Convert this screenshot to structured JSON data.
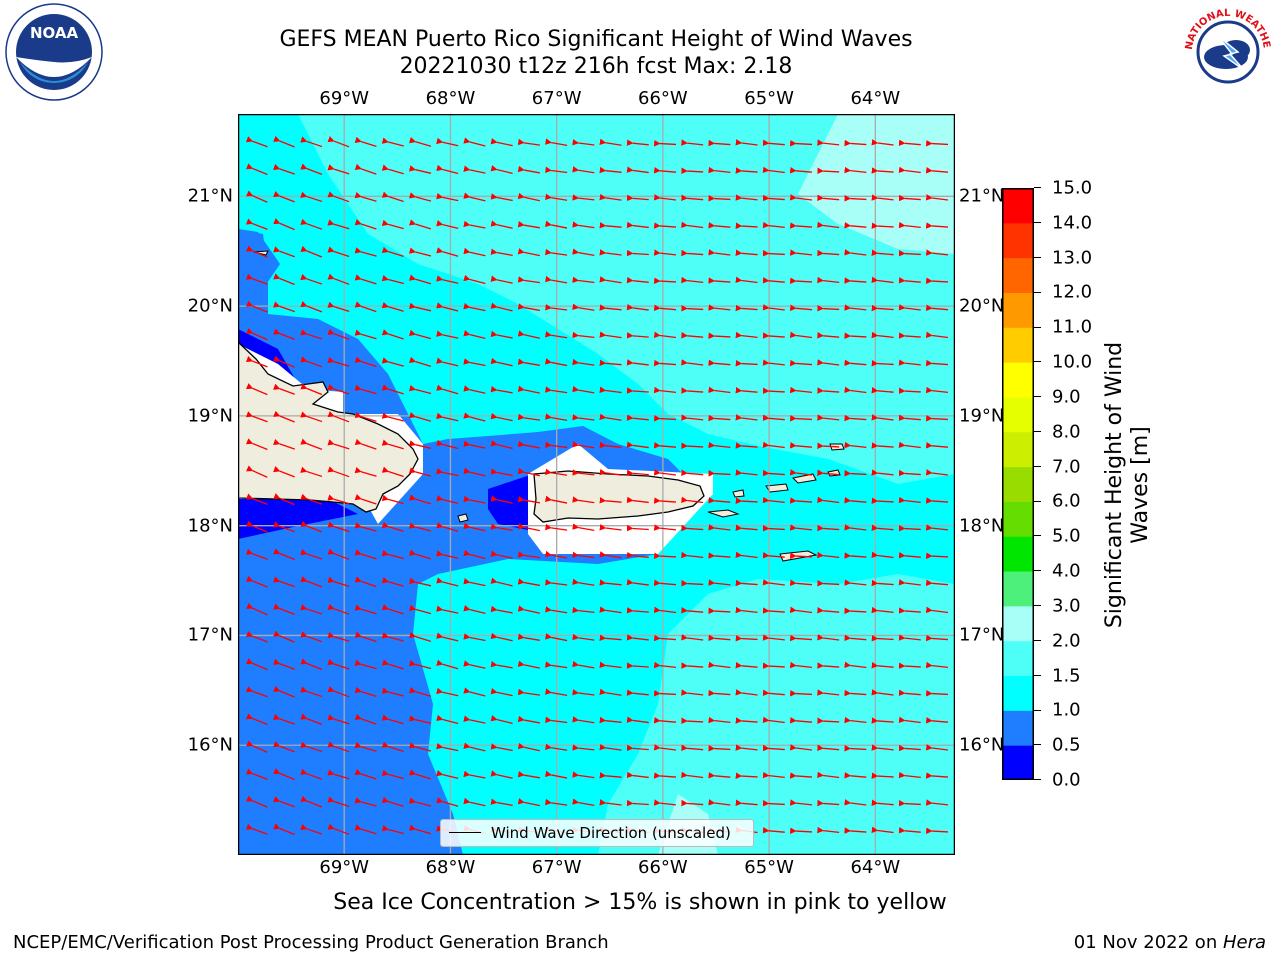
{
  "title": {
    "line1": "GEFS MEAN Puerto Rico Significant Height of Wind Waves",
    "line2": "20221030 t12z 216h fcst   Max: 2.18"
  },
  "map": {
    "lon_ticks": [
      "69°W",
      "68°W",
      "67°W",
      "66°W",
      "65°W",
      "64°W"
    ],
    "lat_ticks": [
      "21°N",
      "20°N",
      "19°N",
      "18°N",
      "17°N",
      "16°N"
    ],
    "lon_values": [
      -69,
      -68,
      -67,
      -66,
      -65,
      -64
    ],
    "lat_values": [
      21,
      20,
      19,
      18,
      17,
      16
    ],
    "lon_range": [
      -70.0,
      -63.25
    ],
    "lat_range": [
      15.0,
      21.75
    ],
    "arrow_color": "#ff0000",
    "land_color": "#efedde"
  },
  "legend": {
    "label": "Wind Wave Direction (unscaled)"
  },
  "colorbar": {
    "title": "Significant Height of Wind Waves [m]",
    "levels": [
      "0.0",
      "0.5",
      "1.0",
      "1.5",
      "2.0",
      "3.0",
      "4.0",
      "5.0",
      "6.0",
      "7.0",
      "8.0",
      "9.0",
      "10.0",
      "11.0",
      "12.0",
      "13.0",
      "14.0",
      "15.0"
    ],
    "colors": [
      "#0000ff",
      "#1e7eff",
      "#00ffff",
      "#4dfff6",
      "#a8fff8",
      "#4df07a",
      "#00e600",
      "#66dd00",
      "#99dd00",
      "#ccee00",
      "#e6ff00",
      "#ffff00",
      "#ffcc00",
      "#ff9900",
      "#ff6600",
      "#ff3300",
      "#ff0000"
    ]
  },
  "note": "Sea Ice Concentration > 15% is shown in pink to yellow",
  "footer": {
    "left": "NCEP/EMC/Verification Post Processing Product Generation Branch",
    "right_prefix": "01 Nov 2022 on ",
    "right_host": "Hera"
  },
  "logos": {
    "noaa_text": "NOAA",
    "nws_text": "NATIONAL WEATHER SERVICE"
  }
}
